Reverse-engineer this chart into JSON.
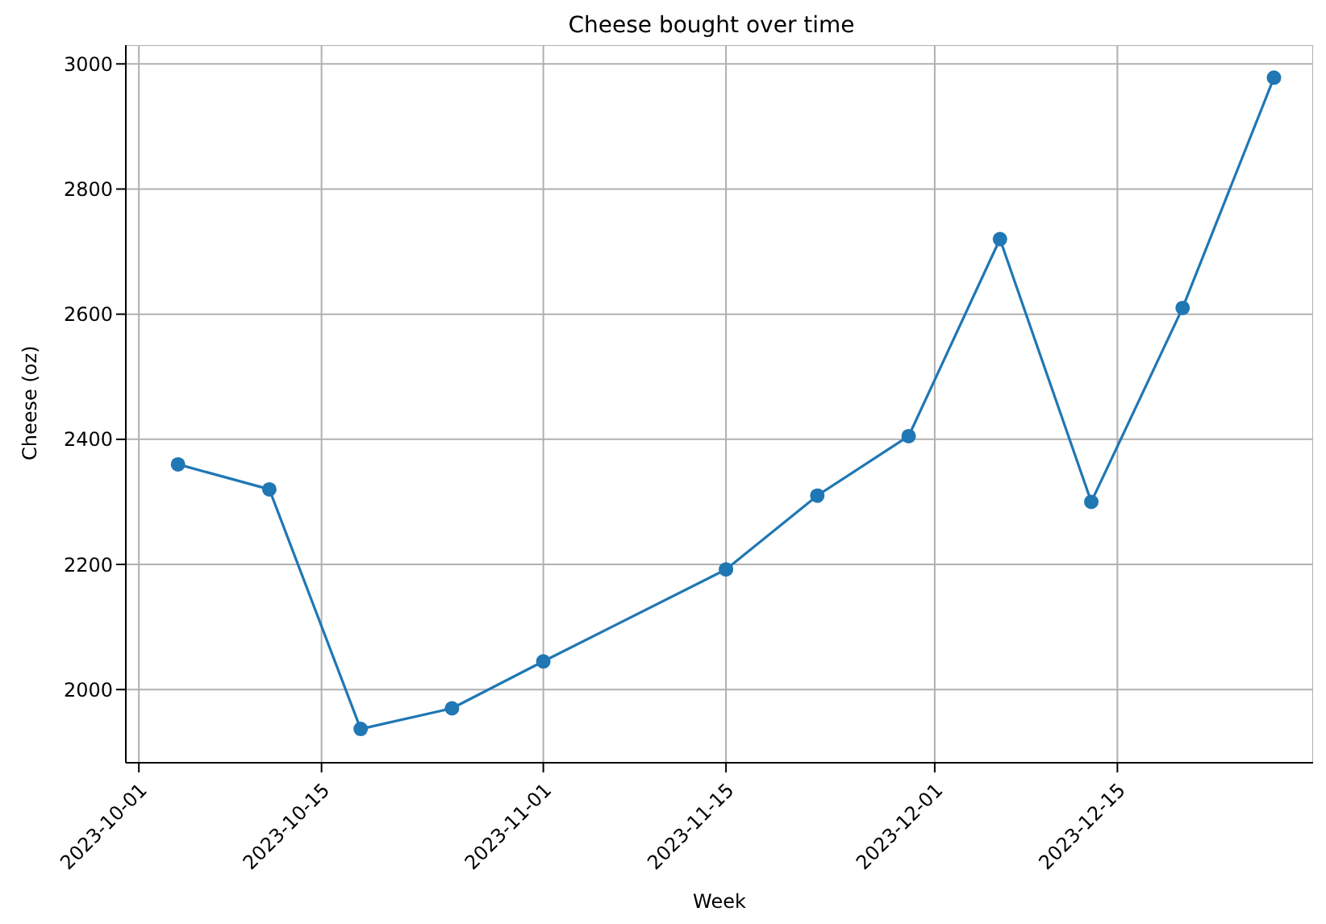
{
  "chart_data": {
    "type": "line",
    "title": "Cheese bought over time",
    "xlabel": "Week",
    "ylabel": "Cheese (oz)",
    "x": [
      "2023-10-04",
      "2023-10-11",
      "2023-10-18",
      "2023-10-25",
      "2023-11-01",
      "2023-11-15",
      "2023-11-22",
      "2023-11-29",
      "2023-12-06",
      "2023-12-13",
      "2023-12-20",
      "2023-12-27"
    ],
    "series": [
      {
        "color": "#1f77b4",
        "values": [
          2360,
          2320,
          1937,
          1970,
          2045,
          2192,
          2310,
          2405,
          2720,
          2300,
          2610,
          2978
        ]
      }
    ],
    "xlim": [
      "2023-09-30",
      "2023-12-30"
    ],
    "xticks": [
      "2023-10-01",
      "2023-10-15",
      "2023-11-01",
      "2023-11-15",
      "2023-12-01",
      "2023-12-15"
    ],
    "ylim": [
      1883,
      3030
    ],
    "yticks": [
      2000,
      2200,
      2400,
      2600,
      2800,
      3000
    ],
    "grid": true,
    "marker": "circle",
    "line_style": "solid"
  }
}
